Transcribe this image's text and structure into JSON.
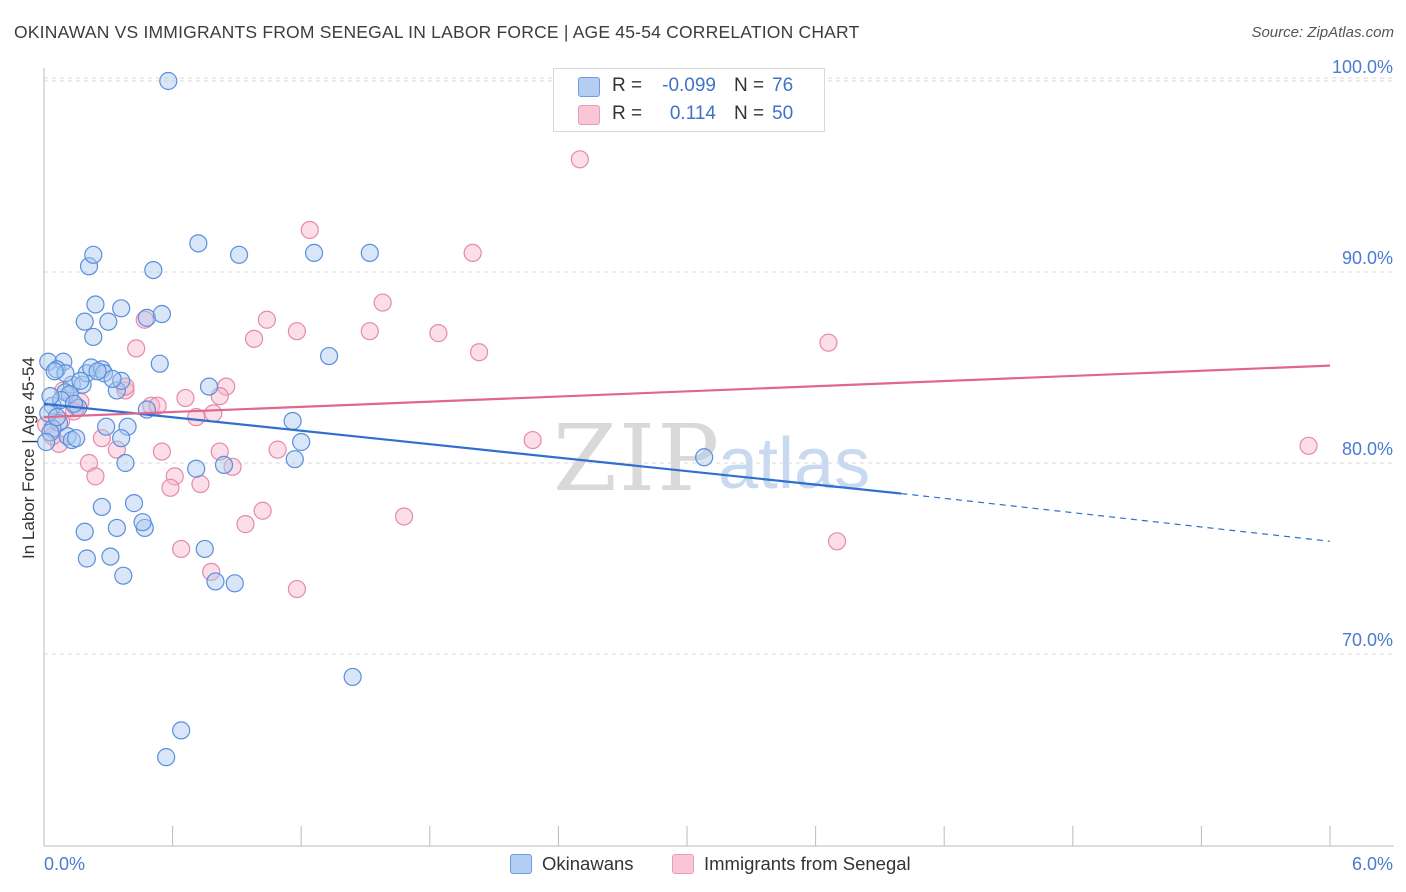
{
  "header": {
    "title": "OKINAWAN VS IMMIGRANTS FROM SENEGAL IN LABOR FORCE | AGE 45-54 CORRELATION CHART",
    "source": "Source: ZipAtlas.com"
  },
  "watermark": {
    "zip": "ZIP",
    "atlas": "atlas"
  },
  "legend": {
    "rows": [
      {
        "r_label": "R =",
        "r_value": "-0.099",
        "n_label": "N =",
        "n_value": "76"
      },
      {
        "r_label": "R =",
        "r_value": "0.114",
        "n_label": "N =",
        "n_value": "50"
      }
    ]
  },
  "bottom_legend": {
    "items": [
      {
        "label": "Okinawans"
      },
      {
        "label": "Immigrants from Senegal"
      }
    ]
  },
  "colors": {
    "blue_fill": "#a9c7f0",
    "blue_stroke": "#5a8fdc",
    "blue_line": "#2f6fce",
    "pink_fill": "#f6b6cb",
    "pink_stroke": "#e58aaa",
    "pink_line": "#e0668f",
    "axis_text": "#4a7bd0",
    "grid": "#d9d9d9"
  },
  "chart_data": {
    "type": "scatter",
    "title": "OKINAWAN VS IMMIGRANTS FROM SENEGAL IN LABOR FORCE | AGE 45-54 CORRELATION CHART",
    "xlabel": "",
    "ylabel": "In Labor Force | Age 45-54",
    "xlim": [
      0,
      6
    ],
    "ylim": [
      60,
      102
    ],
    "x_tick_labels": [
      "0.0%",
      "6.0%"
    ],
    "y_ticks": [
      70,
      80,
      90,
      100
    ],
    "y_tick_labels": [
      "70.0%",
      "80.0%",
      "90.0%",
      "100.0%"
    ],
    "grid": true,
    "series": [
      {
        "name": "Okinawans",
        "r": -0.099,
        "n": 76,
        "trend": {
          "x0": 0,
          "y0": 83.1,
          "x1": 4.0,
          "y1": 78.4,
          "dashed_to_x": 6.0,
          "dashed_to_y": 75.9
        },
        "points": [
          [
            0.58,
            100
          ],
          [
            0.02,
            85.3
          ],
          [
            0.09,
            85.3
          ],
          [
            0.13,
            84.1
          ],
          [
            0.18,
            84.1
          ],
          [
            0.06,
            84.9
          ],
          [
            0.1,
            84.7
          ],
          [
            0.2,
            84.7
          ],
          [
            0.22,
            85.0
          ],
          [
            0.27,
            84.9
          ],
          [
            0.28,
            84.7
          ],
          [
            0.34,
            83.8
          ],
          [
            0.04,
            83.0
          ],
          [
            0.07,
            82.1
          ],
          [
            0.1,
            83.7
          ],
          [
            0.16,
            82.9
          ],
          [
            0.04,
            81.8
          ],
          [
            0.03,
            81.6
          ],
          [
            0.11,
            81.4
          ],
          [
            0.13,
            81.2
          ],
          [
            0.36,
            84.3
          ],
          [
            0.48,
            82.8
          ],
          [
            0.39,
            81.9
          ],
          [
            0.29,
            81.9
          ],
          [
            0.36,
            81.3
          ],
          [
            0.19,
            87.4
          ],
          [
            0.23,
            86.6
          ],
          [
            0.3,
            87.4
          ],
          [
            0.36,
            88.1
          ],
          [
            0.24,
            88.3
          ],
          [
            0.48,
            87.6
          ],
          [
            0.55,
            87.8
          ],
          [
            0.54,
            85.2
          ],
          [
            0.21,
            90.3
          ],
          [
            0.23,
            90.9
          ],
          [
            0.51,
            90.1
          ],
          [
            0.72,
            91.5
          ],
          [
            0.91,
            90.9
          ],
          [
            1.26,
            91.0
          ],
          [
            1.52,
            91.0
          ],
          [
            0.77,
            84.0
          ],
          [
            0.38,
            80.0
          ],
          [
            0.71,
            79.7
          ],
          [
            0.84,
            79.9
          ],
          [
            1.17,
            80.2
          ],
          [
            1.2,
            81.1
          ],
          [
            1.16,
            82.2
          ],
          [
            0.27,
            77.7
          ],
          [
            0.42,
            77.9
          ],
          [
            0.34,
            76.6
          ],
          [
            0.47,
            76.6
          ],
          [
            0.46,
            76.9
          ],
          [
            0.19,
            76.4
          ],
          [
            0.2,
            75.0
          ],
          [
            0.31,
            75.1
          ],
          [
            0.37,
            74.1
          ],
          [
            0.75,
            75.5
          ],
          [
            0.8,
            73.8
          ],
          [
            0.89,
            73.7
          ],
          [
            1.44,
            68.8
          ],
          [
            0.64,
            66.0
          ],
          [
            0.57,
            64.6
          ],
          [
            1.33,
            85.6
          ],
          [
            3.08,
            80.3
          ],
          [
            0.05,
            84.8
          ],
          [
            0.12,
            83.6
          ],
          [
            0.02,
            82.6
          ],
          [
            0.15,
            81.3
          ],
          [
            0.25,
            84.8
          ],
          [
            0.32,
            84.4
          ],
          [
            0.06,
            82.4
          ],
          [
            0.08,
            83.3
          ],
          [
            0.17,
            84.3
          ],
          [
            0.03,
            83.5
          ],
          [
            0.14,
            83.1
          ],
          [
            0.01,
            81.1
          ]
        ]
      },
      {
        "name": "Immigrants from Senegal",
        "r": 0.114,
        "n": 50,
        "trend": {
          "x0": 0,
          "y0": 82.4,
          "x1": 6.0,
          "y1": 85.1
        },
        "points": [
          [
            2.5,
            95.9
          ],
          [
            1.24,
            92.2
          ],
          [
            2.0,
            91.0
          ],
          [
            1.58,
            88.4
          ],
          [
            1.04,
            87.5
          ],
          [
            0.47,
            87.5
          ],
          [
            1.18,
            86.9
          ],
          [
            1.52,
            86.9
          ],
          [
            1.84,
            86.8
          ],
          [
            0.98,
            86.5
          ],
          [
            0.43,
            86.0
          ],
          [
            2.03,
            85.8
          ],
          [
            3.66,
            86.3
          ],
          [
            0.85,
            84.0
          ],
          [
            0.38,
            83.8
          ],
          [
            0.66,
            83.4
          ],
          [
            0.82,
            83.5
          ],
          [
            0.5,
            83.0
          ],
          [
            0.53,
            83.0
          ],
          [
            0.15,
            82.9
          ],
          [
            0.79,
            82.6
          ],
          [
            0.71,
            82.4
          ],
          [
            0.34,
            80.7
          ],
          [
            0.27,
            81.3
          ],
          [
            0.55,
            80.6
          ],
          [
            0.82,
            80.6
          ],
          [
            1.09,
            80.7
          ],
          [
            2.28,
            81.2
          ],
          [
            5.9,
            80.9
          ],
          [
            0.21,
            80.0
          ],
          [
            0.24,
            79.3
          ],
          [
            0.61,
            79.3
          ],
          [
            0.88,
            79.8
          ],
          [
            0.59,
            78.7
          ],
          [
            0.73,
            78.9
          ],
          [
            1.02,
            77.5
          ],
          [
            0.94,
            76.8
          ],
          [
            1.68,
            77.2
          ],
          [
            0.64,
            75.5
          ],
          [
            3.7,
            75.9
          ],
          [
            0.78,
            74.3
          ],
          [
            1.18,
            73.4
          ],
          [
            0.01,
            82.0
          ],
          [
            0.07,
            81.0
          ],
          [
            0.04,
            81.4
          ],
          [
            0.17,
            83.2
          ],
          [
            0.38,
            84.0
          ],
          [
            0.09,
            83.8
          ],
          [
            0.14,
            82.7
          ],
          [
            0.08,
            82.2
          ]
        ]
      }
    ]
  }
}
